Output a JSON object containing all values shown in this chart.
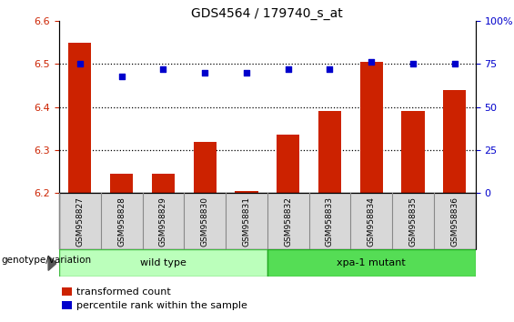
{
  "title": "GDS4564 / 179740_s_at",
  "samples": [
    "GSM958827",
    "GSM958828",
    "GSM958829",
    "GSM958830",
    "GSM958831",
    "GSM958832",
    "GSM958833",
    "GSM958834",
    "GSM958835",
    "GSM958836"
  ],
  "transformed_counts": [
    6.55,
    6.245,
    6.245,
    6.32,
    6.205,
    6.335,
    6.39,
    6.505,
    6.39,
    6.44
  ],
  "percentile_ranks": [
    75,
    68,
    72,
    70,
    70,
    72,
    72,
    76,
    75,
    75
  ],
  "ylim_left": [
    6.2,
    6.6
  ],
  "ylim_right": [
    0,
    100
  ],
  "yticks_left": [
    6.2,
    6.3,
    6.4,
    6.5,
    6.6
  ],
  "yticks_right": [
    0,
    25,
    50,
    75,
    100
  ],
  "bar_color": "#cc2200",
  "dot_color": "#0000cc",
  "grid_color": "black",
  "wild_type_color": "#bbffbb",
  "wild_type_edge": "#44bb44",
  "mutant_color": "#55dd55",
  "mutant_edge": "#22aa22",
  "wild_type_label": "wild type",
  "mutant_label": "xpa-1 mutant",
  "n_wild": 5,
  "legend_bar_label": "transformed count",
  "legend_dot_label": "percentile rank within the sample",
  "genotype_label": "genotype/variation",
  "label_bg_color": "#d8d8d8",
  "label_edge_color": "#888888"
}
